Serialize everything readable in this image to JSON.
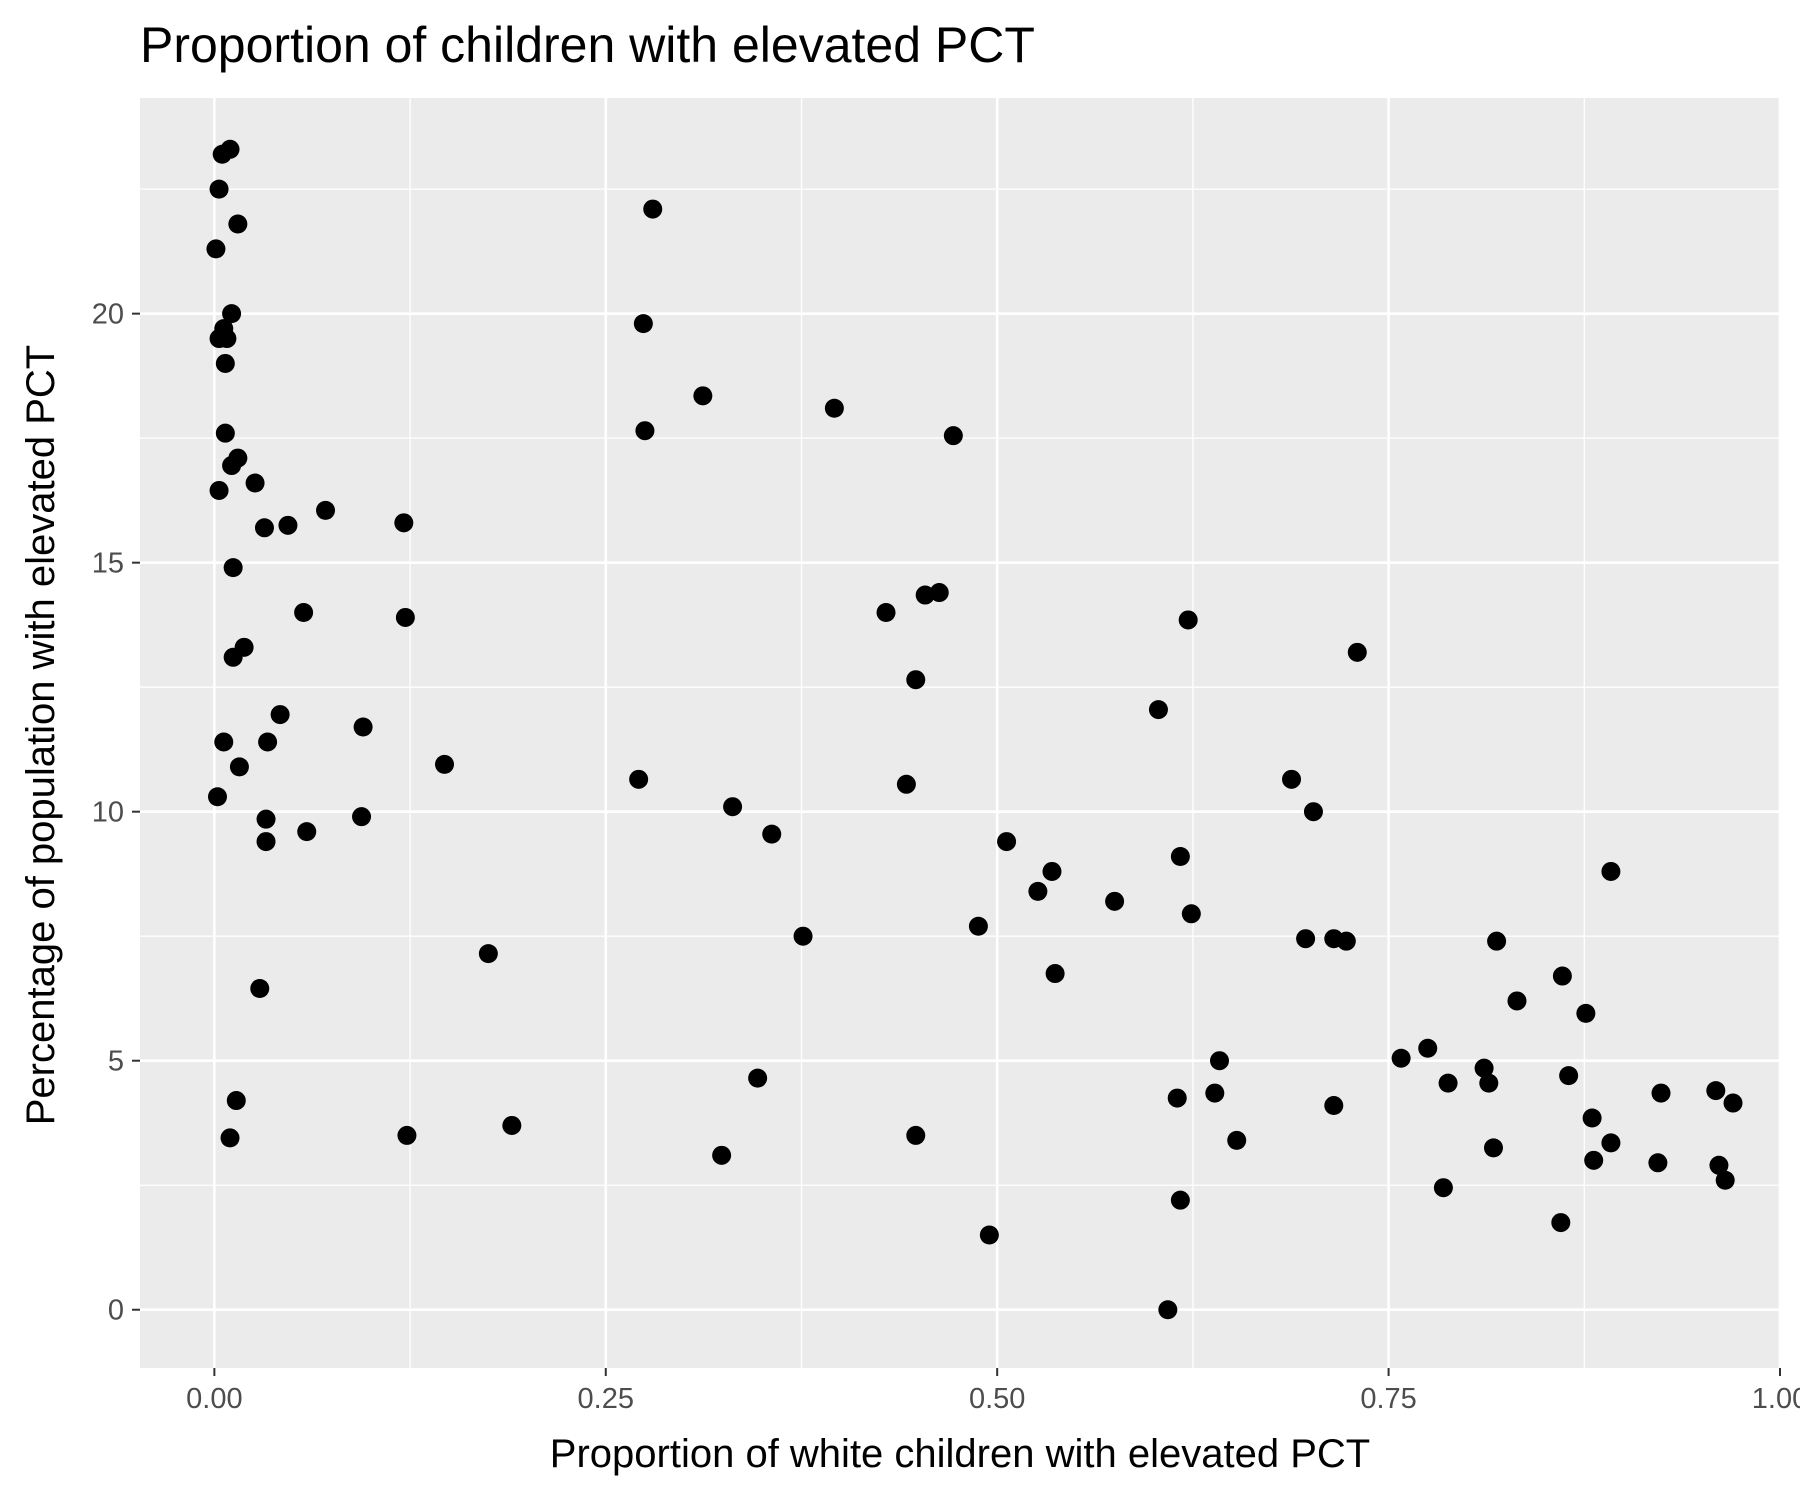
{
  "chart_data": {
    "type": "scatter",
    "title": "Proportion of children with elevated PCT",
    "xlabel": "Proportion of white children with elevated PCT",
    "ylabel": "Percentage of population with elevated PCT",
    "xlim": [
      -0.0475,
      1.0
    ],
    "ylim": [
      -1.17,
      24.33
    ],
    "x_ticks": [
      0,
      0.25,
      0.5,
      0.75,
      1
    ],
    "x_tick_labels": [
      "0.00",
      "0.25",
      "0.50",
      "0.75",
      "1.00"
    ],
    "y_ticks": [
      0,
      5,
      10,
      15,
      20
    ],
    "y_tick_labels": [
      "0",
      "5",
      "10",
      "15",
      "20"
    ],
    "grid": true,
    "background": "#ebebeb",
    "grid_major_color": "#ffffff",
    "point_color": "#000000",
    "x": [
      0.01,
      0.005,
      0.003,
      0.015,
      0.001,
      0.011,
      0.006,
      0.003,
      0.008,
      0.007,
      0.007,
      0.015,
      0.011,
      0.003,
      0.026,
      0.032,
      0.047,
      0.071,
      0.012,
      0.012,
      0.019,
      0.057,
      0.042,
      0.006,
      0.034,
      0.016,
      0.002,
      0.033,
      0.033,
      0.059,
      0.095,
      0.094,
      0.121,
      0.122,
      0.147,
      0.175,
      0.029,
      0.014,
      0.01,
      0.123,
      0.19,
      0.28,
      0.274,
      0.275,
      0.312,
      0.396,
      0.472,
      0.463,
      0.454,
      0.429,
      0.448,
      0.271,
      0.442,
      0.331,
      0.356,
      0.376,
      0.347,
      0.324,
      0.448,
      0.506,
      0.535,
      0.526,
      0.488,
      0.537,
      0.495,
      0.575,
      0.622,
      0.603,
      0.617,
      0.624,
      0.642,
      0.639,
      0.615,
      0.653,
      0.617,
      0.609,
      0.73,
      0.688,
      0.702,
      0.697,
      0.715,
      0.723,
      0.715,
      0.758,
      0.775,
      0.788,
      0.785,
      0.811,
      0.814,
      0.819,
      0.817,
      0.832,
      0.861,
      0.865,
      0.876,
      0.892,
      0.88,
      0.892,
      0.881,
      0.86,
      0.924,
      0.922,
      0.959,
      0.97,
      0.961,
      0.965
    ],
    "y": [
      23.3,
      23.2,
      22.5,
      21.8,
      21.3,
      20.0,
      19.7,
      19.5,
      19.5,
      19.0,
      17.6,
      17.1,
      16.95,
      16.45,
      16.6,
      15.7,
      15.75,
      16.05,
      14.9,
      13.1,
      13.3,
      14.0,
      11.95,
      11.4,
      11.4,
      10.9,
      10.3,
      9.85,
      9.4,
      9.6,
      11.7,
      9.9,
      15.8,
      13.9,
      10.95,
      7.15,
      6.45,
      4.2,
      3.45,
      3.5,
      3.7,
      22.1,
      19.8,
      17.65,
      18.35,
      18.1,
      17.55,
      14.4,
      14.35,
      14.0,
      12.65,
      10.65,
      10.55,
      10.1,
      9.55,
      7.5,
      4.65,
      3.1,
      3.5,
      9.4,
      8.8,
      8.4,
      7.7,
      6.75,
      1.5,
      8.2,
      13.85,
      12.05,
      9.1,
      7.95,
      5.0,
      4.35,
      4.25,
      3.4,
      2.2,
      0.0,
      13.2,
      10.65,
      10.0,
      7.45,
      7.45,
      7.4,
      4.1,
      5.05,
      5.25,
      4.55,
      2.45,
      4.85,
      4.55,
      7.4,
      3.25,
      6.2,
      6.7,
      4.7,
      5.95,
      8.8,
      3.85,
      3.35,
      3.0,
      1.75,
      4.35,
      2.95,
      4.4,
      4.15,
      2.9,
      2.6
    ]
  }
}
